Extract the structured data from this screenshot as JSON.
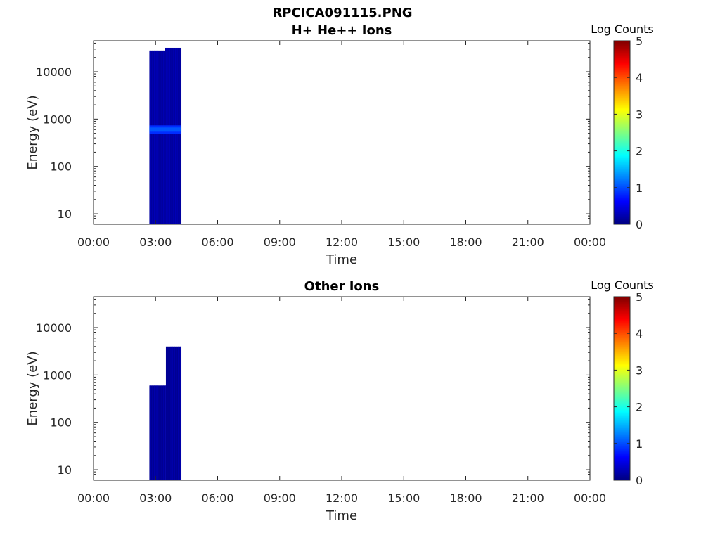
{
  "figure": {
    "title": "RPCICA091115.PNG"
  },
  "colors": {
    "axis": "#262626",
    "background": "#ffffff",
    "colormap": [
      "#00007f",
      "#0000ff",
      "#0080ff",
      "#00ffff",
      "#80ff80",
      "#ffff00",
      "#ff8000",
      "#ff0000",
      "#7f0000"
    ]
  },
  "chart_data": [
    {
      "type": "heatmap",
      "title": "H+ He++ Ions",
      "xlabel": "Time",
      "ylabel": "Energy (eV)",
      "xticks": [
        "00:00",
        "03:00",
        "06:00",
        "09:00",
        "12:00",
        "15:00",
        "18:00",
        "21:00",
        "00:00"
      ],
      "xlim_hours": [
        0,
        24
      ],
      "yscale": "log",
      "yticks": [
        "10",
        "100",
        "1000",
        "10000"
      ],
      "yticks_values": [
        10,
        100,
        1000,
        10000
      ],
      "ylim": [
        6,
        45000
      ],
      "colorbar": {
        "label": "Log Counts",
        "ticks": [
          "0",
          "1",
          "2",
          "3",
          "4",
          "5"
        ],
        "range": [
          0,
          5
        ]
      },
      "regions": [
        {
          "t_start": 2.7,
          "t_end": 3.45,
          "e_min": 6,
          "e_max": 28000,
          "log_counts": 0.15
        },
        {
          "t_start": 3.45,
          "t_end": 4.25,
          "e_min": 6,
          "e_max": 32000,
          "log_counts": 0.15
        }
      ],
      "bands": [
        {
          "t_start": 2.7,
          "t_end": 4.25,
          "e_center": 600,
          "log_counts": 1.05
        }
      ]
    },
    {
      "type": "heatmap",
      "title": "Other Ions",
      "xlabel": "Time",
      "ylabel": "Energy (eV)",
      "xticks": [
        "00:00",
        "03:00",
        "06:00",
        "09:00",
        "12:00",
        "15:00",
        "18:00",
        "21:00",
        "00:00"
      ],
      "xlim_hours": [
        0,
        24
      ],
      "yscale": "log",
      "yticks": [
        "10",
        "100",
        "1000",
        "10000"
      ],
      "yticks_values": [
        10,
        100,
        1000,
        10000
      ],
      "ylim": [
        6,
        45000
      ],
      "colorbar": {
        "label": "Log Counts",
        "ticks": [
          "0",
          "1",
          "2",
          "3",
          "4",
          "5"
        ],
        "range": [
          0,
          5
        ]
      },
      "regions": [
        {
          "t_start": 2.7,
          "t_end": 3.5,
          "e_min": 6,
          "e_max": 600,
          "log_counts": 0.1
        },
        {
          "t_start": 3.5,
          "t_end": 4.25,
          "e_min": 6,
          "e_max": 4000,
          "log_counts": 0.1
        }
      ],
      "bands": []
    }
  ]
}
